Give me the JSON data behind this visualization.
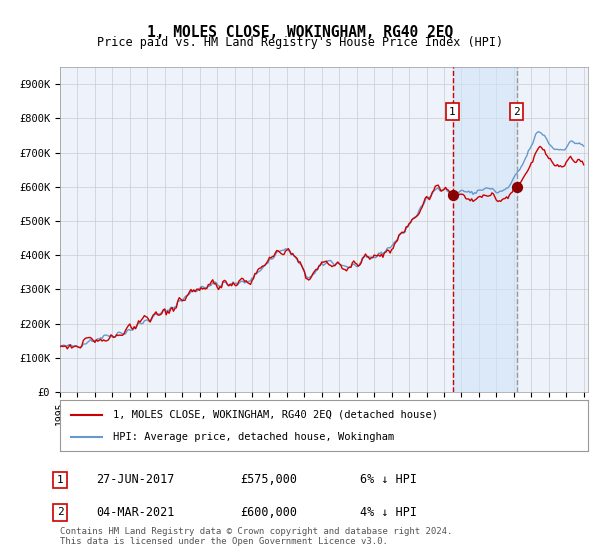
{
  "title": "1, MOLES CLOSE, WOKINGHAM, RG40 2EQ",
  "subtitle": "Price paid vs. HM Land Registry's House Price Index (HPI)",
  "legend_line1": "1, MOLES CLOSE, WOKINGHAM, RG40 2EQ (detached house)",
  "legend_line2": "HPI: Average price, detached house, Wokingham",
  "annotation1_date": "27-JUN-2017",
  "annotation1_price": "£575,000",
  "annotation1_hpi": "6% ↓ HPI",
  "annotation2_date": "04-MAR-2021",
  "annotation2_price": "£600,000",
  "annotation2_hpi": "4% ↓ HPI",
  "footer": "Contains HM Land Registry data © Crown copyright and database right 2024.\nThis data is licensed under the Open Government Licence v3.0.",
  "red_line_color": "#cc0000",
  "blue_line_color": "#6699cc",
  "background_color": "#ffffff",
  "plot_bg_color": "#f0f4ff",
  "grid_color": "#cccccc",
  "vline1_color": "#cc0000",
  "vline2_color": "#999999",
  "shade_color": "#d0e4f7",
  "ylim_min": 0,
  "ylim_max": 950000,
  "yticks": [
    0,
    100000,
    200000,
    300000,
    400000,
    500000,
    600000,
    700000,
    800000,
    900000
  ],
  "ytick_labels": [
    "£0",
    "£100K",
    "£200K",
    "£300K",
    "£400K",
    "£500K",
    "£600K",
    "£700K",
    "£800K",
    "£900K"
  ],
  "sale1_year": 2017.49,
  "sale1_price": 575000,
  "sale2_year": 2021.17,
  "sale2_price": 600000
}
